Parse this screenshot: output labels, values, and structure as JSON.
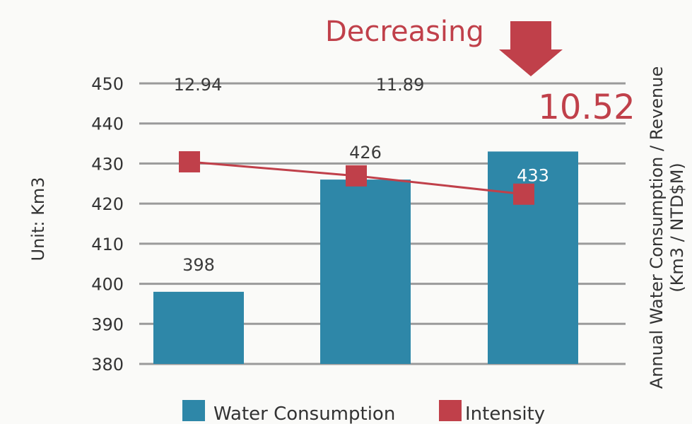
{
  "chart_data": {
    "type": "bar",
    "categories": [
      "",
      "",
      ""
    ],
    "series": [
      {
        "name": "Water Consumption",
        "type": "bar",
        "values": [
          398,
          426,
          433
        ],
        "color": "#2e87a8"
      },
      {
        "name": "Intensity",
        "type": "line",
        "values": [
          12.94,
          11.89,
          10.52
        ],
        "color": "#c0404a"
      }
    ],
    "data_labels": {
      "water": [
        "398",
        "426",
        "433"
      ],
      "intensity": [
        "12.94",
        "11.89",
        "10.52"
      ]
    },
    "ylim": [
      380,
      450
    ],
    "yticks": [
      "450",
      "440",
      "430",
      "420",
      "410",
      "400",
      "390",
      "380"
    ],
    "ylabel": "Unit: Km3",
    "y2label_line1": "Annual Water Consumption / Revenue",
    "y2label_line2": "(Km3 / NTD$M)",
    "annotation": "Decreasing",
    "legend_position": "bottom",
    "grid": true,
    "colors": {
      "bar": "#2e87a8",
      "line": "#c0404a",
      "grid": "#9a9a9a",
      "annotation": "#c0404a"
    }
  }
}
